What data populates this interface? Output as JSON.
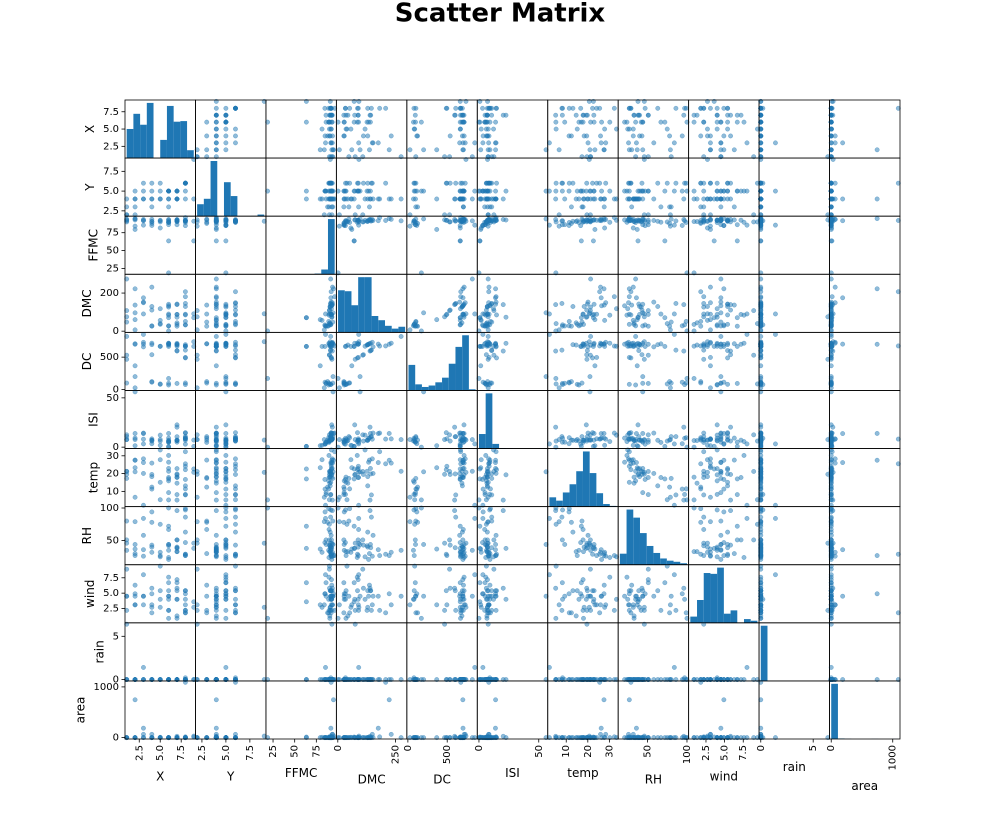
{
  "chart_data": {
    "type": "scatter_matrix",
    "title": "Scatter Matrix",
    "color": "#1f77b4",
    "variables": [
      {
        "name": "X",
        "lim": [
          0.8,
          9.2
        ],
        "yticks": [
          2.5,
          {
            "value": 5,
            "label": "5.0"
          },
          7.5
        ],
        "xticks": [
          2.5,
          {
            "value": 5,
            "label": "5.0"
          },
          7.5
        ],
        "hist_bins": [
          1,
          1.8,
          2.6,
          3.4,
          4.2,
          5,
          5.8,
          6.6,
          7.4,
          8.2,
          9
        ],
        "hist_counts": [
          48,
          73,
          55,
          91,
          0,
          30,
          86,
          60,
          61,
          13
        ],
        "values": [
          7,
          7,
          7,
          8,
          8,
          8,
          8,
          8,
          8,
          7,
          7,
          7,
          6,
          6,
          6,
          6,
          5,
          8,
          6,
          6,
          4,
          2,
          1,
          2,
          3,
          4,
          9,
          1,
          2,
          6,
          3,
          5,
          4,
          1,
          7,
          9,
          6,
          2,
          8,
          4,
          3,
          5,
          7,
          1,
          6,
          4,
          8,
          2,
          5,
          3
        ]
      },
      {
        "name": "Y",
        "lim": [
          1.825,
          9.175
        ],
        "yticks": [
          2.5,
          {
            "value": 5,
            "label": "5.0"
          },
          7.5
        ],
        "xticks": [
          2.5,
          {
            "value": 5,
            "label": "5.0"
          },
          7.5
        ],
        "hist_bins": [
          2,
          2.7,
          3.4,
          4.1,
          4.8,
          5.5,
          6.2,
          6.9,
          7.6,
          8.3,
          9
        ],
        "hist_counts": [
          44,
          64,
          203,
          0,
          125,
          74,
          0,
          0,
          1,
          6
        ],
        "values": [
          5,
          4,
          4,
          6,
          6,
          6,
          6,
          6,
          6,
          5,
          5,
          5,
          5,
          5,
          5,
          5,
          5,
          5,
          4,
          4,
          4,
          2,
          2,
          4,
          4,
          4,
          9,
          4,
          5,
          3,
          6,
          4,
          3,
          3,
          4,
          4,
          5,
          4,
          6,
          5,
          4,
          6,
          4,
          2,
          5,
          6,
          4,
          3,
          4,
          5
        ]
      },
      {
        "name": "FFMC",
        "lim": [
          16.76,
          98.14
        ],
        "yticks": [
          25,
          50,
          75
        ],
        "xticks": [
          25,
          50,
          75
        ],
        "hist_bins": [
          18.7,
          26.45,
          34.2,
          41.95,
          49.7,
          57.45,
          65.2,
          72.95,
          80.7,
          88.45,
          96.2
        ],
        "hist_counts": [
          1,
          0,
          0,
          0,
          1,
          2,
          2,
          6,
          40,
          464
        ],
        "values": [
          86.2,
          90.6,
          90.6,
          91.7,
          89.3,
          92.3,
          92.3,
          91.5,
          91,
          92.5,
          92.5,
          92.8,
          63.5,
          90.9,
          92.9,
          93.3,
          91.7,
          84.9,
          89.2,
          86.3,
          91,
          84.2,
          90.1,
          94.8,
          92.1,
          93.7,
          91.1,
          91.6,
          94.3,
          89.7,
          93.5,
          92.4,
          88,
          94,
          91.4,
          63.5,
          18.7,
          79.5,
          92.1,
          85.1,
          91.8,
          90.1,
          93.5,
          93,
          89.6,
          90.2,
          96.2,
          92.9,
          81.6,
          85.6
        ]
      },
      {
        "name": "DMC",
        "lim": [
          -6.2,
          298.6
        ],
        "yticks": [
          0,
          200
        ],
        "xticks": [
          0,
          250
        ],
        "hist_bins": [
          1.1,
          30.12,
          59.14,
          88.16,
          117.18,
          146.2,
          175.22,
          204.24,
          233.26,
          262.28,
          291.3
        ],
        "hist_counts": [
          90,
          88,
          58,
          118,
          118,
          35,
          26,
          14,
          8,
          12
        ],
        "values": [
          26.2,
          35.4,
          43.7,
          33.3,
          51.3,
          85.3,
          88.9,
          145.4,
          129.5,
          88,
          88,
          73.2,
          70.8,
          126.5,
          133.3,
          141.2,
          35.8,
          32.8,
          27.9,
          27.4,
          129.5,
          6.8,
          108,
          222.4,
          152.6,
          231.1,
          91.3,
          273.8,
          96.3,
          90,
          149.3,
          117.9,
          26.2,
          47.9,
          142.4,
          70.8,
          1.1,
          60.6,
          207,
          28,
          175.1,
          39.7,
          139.4,
          75.3,
          84.1,
          110.9,
          181.1,
          137,
          56.7,
          90.4
        ]
      },
      {
        "name": "DC",
        "lim": [
          -13.4,
          881.9
        ],
        "yticks": [
          0,
          500
        ],
        "xticks": [
          0,
          500
        ],
        "hist_bins": [
          7.9,
          93.17,
          178.44,
          263.71,
          348.98,
          434.25,
          519.52,
          604.79,
          690.06,
          775.33,
          860.6
        ],
        "hist_counts": [
          88,
          21,
          12,
          17,
          28,
          44,
          92,
          150,
          190,
          4
        ],
        "values": [
          94.3,
          669.1,
          686.9,
          77.5,
          102.2,
          488,
          495.6,
          608.2,
          692.6,
          698.6,
          698.6,
          713,
          665.3,
          686.5,
          699.6,
          713.9,
          80.8,
          664.2,
          70.8,
          97.1,
          692.6,
          26.6,
          529.8,
          698.6,
          658.2,
          715.1,
          738.1,
          819.1,
          200,
          704.4,
          728.6,
          668,
          123.5,
          100.7,
          601.4,
          665.3,
          171.4,
          366.7,
          672.6,
          113.8,
          700.7,
          86.6,
          594.2,
          466.6,
          714.3,
          537.4,
          671.2,
          706.4,
          665.6,
          850.2
        ]
      },
      {
        "name": "ISI",
        "lim": [
          -1.4,
          57.5
        ],
        "yticks": [
          0,
          50
        ],
        "xticks": [
          0,
          50
        ],
        "hist_bins": [
          0,
          5.61,
          11.22,
          16.83,
          22.44,
          28.05,
          33.66,
          39.27,
          44.88,
          50.49,
          56.1
        ],
        "hist_counts": [
          100,
          380,
          32,
          3,
          1,
          0,
          0,
          0,
          0,
          1
        ],
        "values": [
          5.1,
          6.7,
          6.7,
          9,
          9.6,
          14.7,
          8.5,
          10.7,
          7,
          7.1,
          7.1,
          22.6,
          0.8,
          7,
          9.2,
          13.9,
          7.8,
          3,
          6.3,
          5.1,
          7,
          7.7,
          12.5,
          13.9,
          14.3,
          8.4,
          7.2,
          7.7,
          56.1,
          4.8,
          8.1,
          12.2,
          7.2,
          10.7,
          10.6,
          0.8,
          0,
          1.5,
          8.2,
          3.5,
          13.8,
          6.2,
          20.3,
          7.7,
          5.7,
          6.2,
          14.3,
          9.2,
          1.9,
          3.3
        ]
      },
      {
        "name": "temp",
        "lim": [
          1.42,
          34.08
        ],
        "yticks": [
          10,
          20,
          30
        ],
        "xticks": [
          10,
          20,
          30
        ],
        "hist_bins": [
          2.2,
          5.31,
          8.42,
          11.53,
          14.64,
          17.75,
          20.86,
          23.97,
          27.08,
          30.19,
          33.3
        ],
        "hist_counts": [
          25,
          16,
          38,
          60,
          95,
          148,
          90,
          36,
          7,
          2
        ],
        "values": [
          8.2,
          18,
          14.6,
          8.3,
          11.4,
          22.2,
          24.1,
          8,
          13.1,
          22.8,
          17.8,
          19.3,
          17,
          21.3,
          26.4,
          22.9,
          15.1,
          16.7,
          15.9,
          9.3,
          18.3,
          6.7,
          21.2,
          27.5,
          20.1,
          25.9,
          20.7,
          21.3,
          21,
          17.8,
          28.3,
          33.3,
          12.4,
          17.3,
          19.8,
          22.6,
          5.2,
          23.3,
          25.5,
          11.3,
          26.2,
          5.3,
          5.1,
          19.6,
          30.2,
          19.5,
          32.3,
          27.6,
          27.8,
          2.2
        ]
      },
      {
        "name": "RH",
        "lim": [
          12.9,
          102.1
        ],
        "yticks": [
          50,
          100
        ],
        "xticks": [
          50,
          100
        ],
        "hist_bins": [
          15,
          23.5,
          32,
          40.5,
          49,
          57.5,
          66,
          74.5,
          83,
          91.5,
          100
        ],
        "hist_counts": [
          30,
          150,
          128,
          86,
          51,
          32,
          17,
          11,
          8,
          4
        ],
        "values": [
          51,
          33,
          33,
          97,
          99,
          29,
          27,
          86,
          63,
          40,
          51,
          38,
          72,
          42,
          21,
          44,
          27,
          47,
          35,
          44,
          40,
          79,
          51,
          27,
          58,
          32,
          46,
          35,
          44,
          67,
          26,
          25,
          78,
          80,
          39,
          38,
          100,
          37,
          29,
          94,
          36,
          75,
          96,
          46,
          24,
          43,
          27,
          30,
          32,
          84
        ]
      },
      {
        "name": "wind",
        "lim": [
          0.175,
          9.625
        ],
        "yticks": [
          2.5,
          {
            "value": 5,
            "label": "5.0"
          },
          7.5
        ],
        "xticks": [
          2.5,
          {
            "value": 5,
            "label": "5.0"
          },
          7.5
        ],
        "hist_bins": [
          0.4,
          1.3,
          2.2,
          3.1,
          4,
          4.9,
          5.8,
          6.7,
          7.6,
          8.5,
          9.4
        ],
        "hist_counts": [
          15,
          55,
          120,
          118,
          133,
          22,
          30,
          0,
          9,
          5
        ],
        "values": [
          6.7,
          0.9,
          1.3,
          4,
          1.8,
          5.4,
          3.1,
          2.2,
          5.4,
          4,
          7.2,
          4,
          6.7,
          2.2,
          4.5,
          5.4,
          5.4,
          4.9,
          4,
          4.5,
          2.7,
          3.1,
          8.9,
          4.9,
          4.5,
          3.1,
          2.7,
          4.5,
          4.5,
          2.2,
          3.1,
          4,
          1.8,
          4.5,
          5.4,
          3.6,
          0.9,
          3.1,
          1.8,
          4.9,
          4.5,
          9.4,
          5.8,
          2.2,
          7.6,
          5.8,
          2.2,
          6.3,
          2.7,
          8
        ]
      },
      {
        "name": "rain",
        "lim": [
          -0.16,
          6.56
        ],
        "yticks": [
          0,
          5
        ],
        "xticks": [
          0,
          5
        ],
        "hist_bins": [
          0,
          0.64,
          1.28,
          1.92,
          2.56,
          3.2,
          3.84,
          4.48,
          5.12,
          5.76,
          6.4
        ],
        "hist_counts": [
          513,
          1,
          1,
          0,
          0,
          0,
          0,
          0,
          0,
          1
        ],
        "values": [
          0,
          0,
          0,
          0.2,
          0,
          0,
          0,
          0,
          0,
          0,
          0,
          0,
          0,
          0,
          0,
          0,
          0,
          0,
          0,
          0,
          0,
          0,
          0,
          0,
          0,
          0,
          0,
          0,
          0,
          0,
          0,
          0,
          0,
          0,
          0,
          0,
          0,
          0,
          0,
          0,
          0,
          0,
          0,
          6.4,
          0,
          0,
          0,
          0,
          0,
          1.4
        ]
      },
      {
        "name": "area",
        "lim": [
          -27.3,
          1118.1
        ],
        "yticks": [
          0,
          1000
        ],
        "xticks": [
          0,
          1000
        ],
        "hist_bins": [
          0,
          109.08,
          218.17,
          327.25,
          436.34,
          545.42,
          654.5,
          763.59,
          872.67,
          981.76,
          1090.84
        ],
        "hist_counts": [
          508,
          5,
          2,
          0,
          0,
          0,
          1,
          0,
          0,
          1
        ],
        "values": [
          0,
          0,
          0,
          0,
          0,
          0,
          0,
          0,
          0,
          0,
          0,
          0,
          0,
          0,
          0,
          0,
          0,
          0,
          0,
          0,
          0,
          0,
          0.61,
          746.28,
          2.18,
          64.1,
          30.18,
          0,
          0,
          0,
          64.1,
          0,
          0,
          0,
          0,
          11.32,
          0,
          0,
          1090.84,
          0,
          185.76,
          0,
          26,
          0,
          0,
          0,
          14.68,
          0,
          6.44,
          0
        ]
      }
    ]
  }
}
